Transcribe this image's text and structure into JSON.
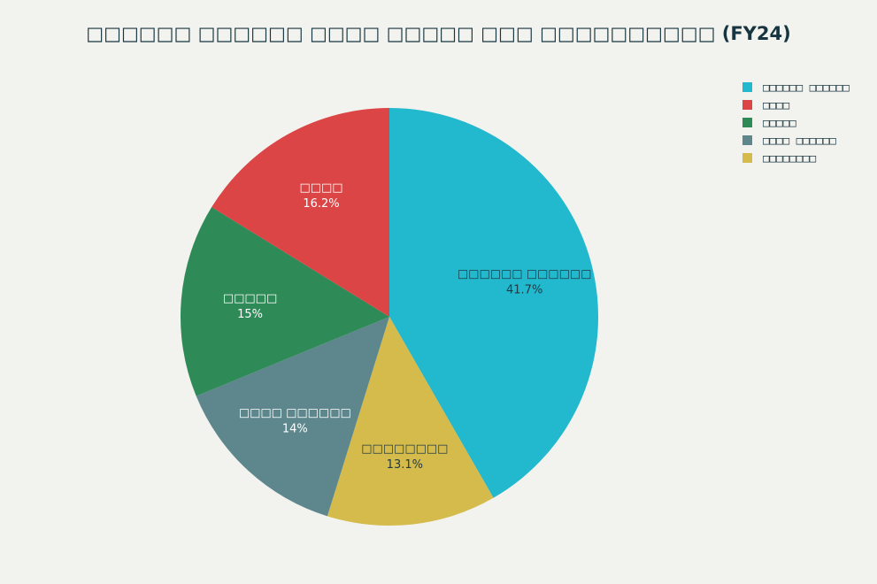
{
  "chart_data": {
    "type": "pie",
    "title": "□□□□□□ □□□□□□ □□□□ □□□□□ □□□ □□□□□□□□□□ (FY24)",
    "start_angle": "12 o'clock",
    "direction": "clockwise",
    "legend_position": "top-right",
    "slices": [
      {
        "label": "□□□□□□ □□□□□□",
        "value": 41.7,
        "display": "41.7%",
        "color": "#22b8cd",
        "label_color": "#1e3a44"
      },
      {
        "label": "□□□□□□□□",
        "value": 13.1,
        "display": "13.1%",
        "color": "#d4bb4c",
        "label_color": "#1e3a44"
      },
      {
        "label": "□□□□ □□□□□□",
        "value": 14.0,
        "display": "14%",
        "color": "#5d878d",
        "label_color": "#ffffff"
      },
      {
        "label": "□□□□□",
        "value": 15.0,
        "display": "15%",
        "color": "#2e8a57",
        "label_color": "#ffffff"
      },
      {
        "label": "□□□□",
        "value": 16.2,
        "display": "16.2%",
        "color": "#dc4546",
        "label_color": "#ffffff"
      }
    ],
    "legend_order": [
      0,
      4,
      3,
      2,
      1
    ]
  }
}
